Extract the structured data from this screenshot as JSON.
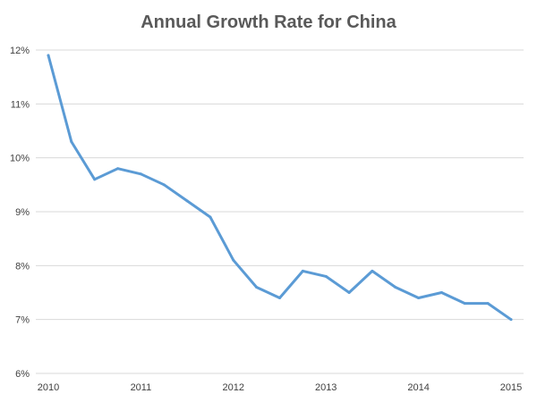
{
  "chart_data": {
    "type": "line",
    "title": "Annual Growth Rate for China",
    "xlabel": "",
    "ylabel": "",
    "ylim": [
      6,
      12
    ],
    "xlim": [
      2010,
      2015
    ],
    "grid": true,
    "legend": "none",
    "y_ticks": [
      "6%",
      "7%",
      "8%",
      "9%",
      "10%",
      "11%",
      "12%"
    ],
    "x_ticks": [
      "2010",
      "2011",
      "2012",
      "2013",
      "2014",
      "2015"
    ],
    "series": [
      {
        "x": [
          2010.0,
          2010.25,
          2010.5,
          2010.75,
          2011.0,
          2011.25,
          2011.5,
          2011.75,
          2012.0,
          2012.25,
          2012.5,
          2012.75,
          2013.0,
          2013.25,
          2013.5,
          2013.75,
          2014.0,
          2014.25,
          2014.5,
          2014.75,
          2015.0
        ],
        "values": [
          11.9,
          10.3,
          9.6,
          9.8,
          9.7,
          9.5,
          9.2,
          8.9,
          8.1,
          7.6,
          7.4,
          7.9,
          7.8,
          7.5,
          7.9,
          7.6,
          7.4,
          7.5,
          7.3,
          7.3,
          7.0
        ],
        "color": "#5B9BD5"
      }
    ]
  }
}
